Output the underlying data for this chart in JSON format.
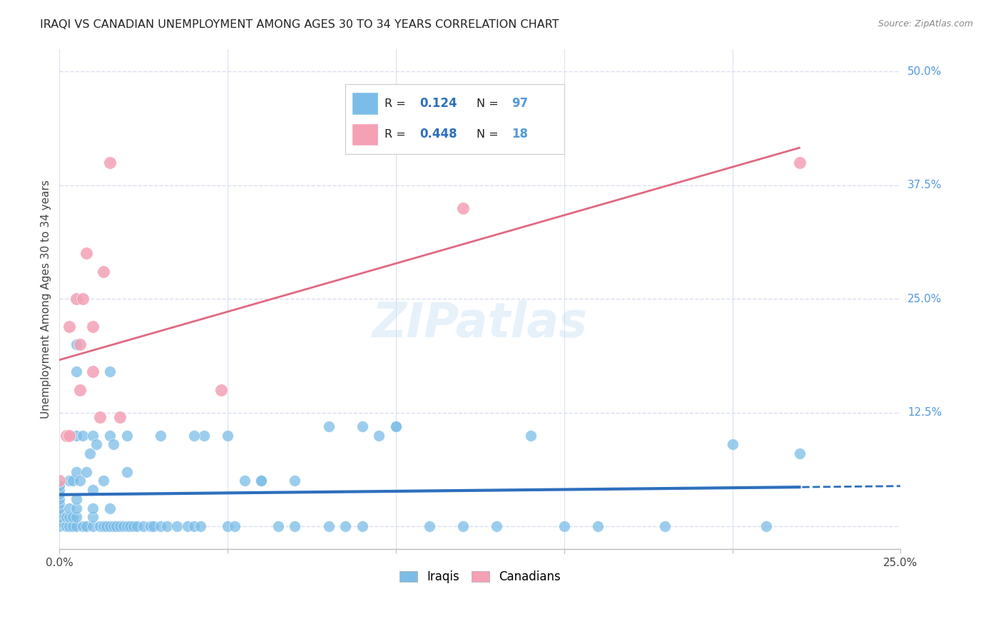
{
  "title": "IRAQI VS CANADIAN UNEMPLOYMENT AMONG AGES 30 TO 34 YEARS CORRELATION CHART",
  "source": "Source: ZipAtlas.com",
  "ylabel": "Unemployment Among Ages 30 to 34 years",
  "xlim": [
    0.0,
    0.25
  ],
  "ylim": [
    -0.025,
    0.525
  ],
  "xticks": [
    0.0,
    0.05,
    0.1,
    0.15,
    0.2,
    0.25
  ],
  "ytick_vals": [
    0.0,
    0.125,
    0.25,
    0.375,
    0.5
  ],
  "ytick_labels_right": [
    "",
    "12.5%",
    "25.0%",
    "37.5%",
    "50.0%"
  ],
  "xtick_labels": [
    "0.0%",
    "",
    "",
    "",
    "",
    "25.0%"
  ],
  "bg_color": "#ffffff",
  "grid_color": "#d8ddf0",
  "iraqis_color": "#7bbde8",
  "canadians_color": "#f4a0b5",
  "iraqis_line_color": "#2e6fbe",
  "canadians_line_color": "#e06880",
  "right_label_color": "#5599dd",
  "iraqis_R": 0.124,
  "iraqis_N": 97,
  "canadians_R": 0.448,
  "canadians_N": 18,
  "iraqis_x": [
    0.0,
    0.0,
    0.0,
    0.0,
    0.0,
    0.0,
    0.0,
    0.0,
    0.0,
    0.0,
    0.002,
    0.002,
    0.003,
    0.003,
    0.003,
    0.003,
    0.004,
    0.004,
    0.004,
    0.005,
    0.005,
    0.005,
    0.005,
    0.005,
    0.005,
    0.005,
    0.005,
    0.006,
    0.007,
    0.007,
    0.008,
    0.008,
    0.009,
    0.01,
    0.01,
    0.01,
    0.01,
    0.011,
    0.012,
    0.013,
    0.013,
    0.014,
    0.015,
    0.015,
    0.015,
    0.016,
    0.016,
    0.017,
    0.018,
    0.019,
    0.02,
    0.02,
    0.021,
    0.022,
    0.023,
    0.025,
    0.027,
    0.028,
    0.03,
    0.032,
    0.035,
    0.038,
    0.04,
    0.042,
    0.043,
    0.05,
    0.052,
    0.055,
    0.06,
    0.065,
    0.07,
    0.08,
    0.085,
    0.09,
    0.095,
    0.1,
    0.11,
    0.12,
    0.13,
    0.14,
    0.15,
    0.16,
    0.18,
    0.2,
    0.21,
    0.22,
    0.01,
    0.015,
    0.02,
    0.03,
    0.04,
    0.05,
    0.06,
    0.07,
    0.08,
    0.09,
    0.1
  ],
  "iraqis_y": [
    0.0,
    0.005,
    0.01,
    0.015,
    0.02,
    0.025,
    0.03,
    0.035,
    0.04,
    0.045,
    0.0,
    0.01,
    0.0,
    0.01,
    0.02,
    0.05,
    0.0,
    0.01,
    0.05,
    0.0,
    0.01,
    0.02,
    0.03,
    0.06,
    0.1,
    0.17,
    0.2,
    0.05,
    0.0,
    0.1,
    0.0,
    0.06,
    0.08,
    0.0,
    0.01,
    0.02,
    0.1,
    0.09,
    0.0,
    0.0,
    0.05,
    0.0,
    0.0,
    0.02,
    0.1,
    0.0,
    0.09,
    0.0,
    0.0,
    0.0,
    0.0,
    0.06,
    0.0,
    0.0,
    0.0,
    0.0,
    0.0,
    0.0,
    0.0,
    0.0,
    0.0,
    0.0,
    0.0,
    0.0,
    0.1,
    0.0,
    0.0,
    0.05,
    0.05,
    0.0,
    0.0,
    0.0,
    0.0,
    0.0,
    0.1,
    0.11,
    0.0,
    0.0,
    0.0,
    0.1,
    0.0,
    0.0,
    0.0,
    0.09,
    0.0,
    0.08,
    0.04,
    0.17,
    0.1,
    0.1,
    0.1,
    0.1,
    0.05,
    0.05,
    0.11,
    0.11,
    0.11
  ],
  "canadians_x": [
    0.0,
    0.002,
    0.003,
    0.003,
    0.005,
    0.006,
    0.006,
    0.007,
    0.008,
    0.01,
    0.01,
    0.012,
    0.013,
    0.015,
    0.018,
    0.048,
    0.12,
    0.22
  ],
  "canadians_y": [
    0.05,
    0.1,
    0.1,
    0.22,
    0.25,
    0.15,
    0.2,
    0.25,
    0.3,
    0.17,
    0.22,
    0.12,
    0.28,
    0.4,
    0.12,
    0.15,
    0.35,
    0.4
  ]
}
